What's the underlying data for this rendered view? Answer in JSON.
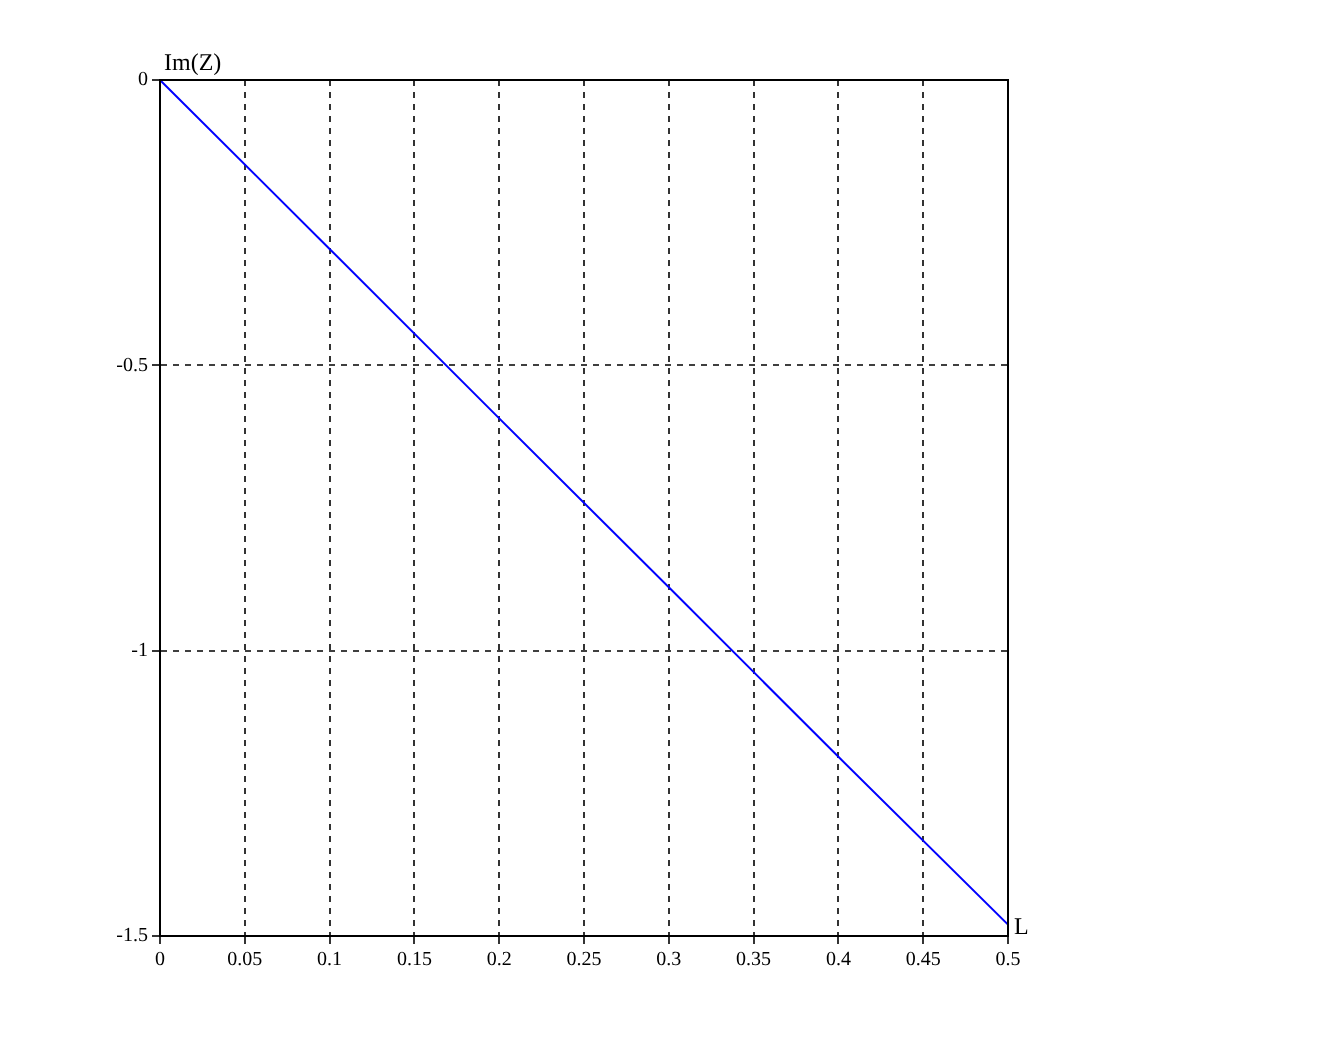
{
  "chart_data": {
    "type": "line",
    "xlabel": "L",
    "ylabel": "Im(Z)",
    "x": [
      0,
      0.1,
      0.2,
      0.3,
      0.4,
      0.5
    ],
    "series": [
      {
        "color": "#0000ff",
        "values": [
          0,
          -0.296,
          -0.593,
          -0.889,
          -1.186,
          -1.48
        ]
      }
    ],
    "xlim": [
      0,
      0.5
    ],
    "xticks": [
      0,
      0.05,
      0.1,
      0.15,
      0.2,
      0.25,
      0.3,
      0.35,
      0.4,
      0.45,
      0.5
    ],
    "ylim": [
      -1.5,
      0
    ],
    "yticks": [
      0,
      -0.5,
      -1,
      -1.5
    ],
    "grid": true,
    "legend": false,
    "marker": "none",
    "line_style": "solid"
  }
}
